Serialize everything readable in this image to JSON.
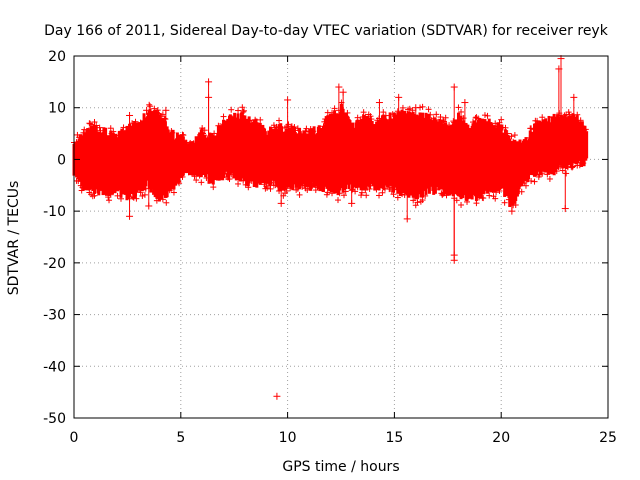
{
  "chart_data": {
    "type": "scatter",
    "title": "Day 166 of 2011, Sidereal Day-to-day VTEC variation (SDTVAR) for receiver reyk",
    "xlabel": "GPS time / hours",
    "ylabel": "SDTVAR / TECUs",
    "xlim": [
      0,
      25
    ],
    "ylim": [
      -50,
      20
    ],
    "xticks": [
      0,
      5,
      10,
      15,
      20,
      25
    ],
    "yticks": [
      -50,
      -40,
      -30,
      -20,
      -10,
      0,
      10,
      20
    ],
    "grid": true,
    "marker": "+",
    "color": "#ff0000",
    "series": [
      {
        "name": "SDTVAR",
        "envelope": {
          "x": [
            0.0,
            0.5,
            1.0,
            1.5,
            2.0,
            2.5,
            3.0,
            3.5,
            4.0,
            4.5,
            5.0,
            5.5,
            6.0,
            6.5,
            7.0,
            7.5,
            8.0,
            8.5,
            9.0,
            9.5,
            10.0,
            10.5,
            11.0,
            11.5,
            12.0,
            12.5,
            13.0,
            13.5,
            14.0,
            14.5,
            15.0,
            15.5,
            16.0,
            16.5,
            17.0,
            17.5,
            18.0,
            18.5,
            19.0,
            19.5,
            20.0,
            20.5,
            21.0,
            21.5,
            22.0,
            22.5,
            23.0,
            23.5,
            24.0
          ],
          "upper": [
            3,
            5,
            6,
            5,
            4,
            6,
            7,
            9,
            8,
            5,
            4,
            3,
            5,
            4,
            7,
            8,
            8,
            7,
            5,
            6,
            6,
            5,
            5,
            6,
            8,
            10,
            6,
            8,
            7,
            8,
            8,
            9,
            8,
            8,
            7,
            6,
            8,
            6,
            7,
            7,
            6,
            3,
            3,
            6,
            7,
            8,
            8,
            8,
            6
          ],
          "lower": [
            -3,
            -5,
            -6,
            -6,
            -6,
            -7,
            -6,
            -5,
            -8,
            -6,
            -3,
            -2,
            -3,
            -4,
            -3,
            -3,
            -4,
            -5,
            -4,
            -5,
            -5,
            -5,
            -5,
            -5,
            -6,
            -6,
            -5,
            -5,
            -5,
            -5,
            -6,
            -6,
            -7,
            -6,
            -6,
            -6,
            -7,
            -7,
            -7,
            -6,
            -5,
            -9,
            -4,
            -3,
            -2,
            -2,
            -1,
            -1,
            0
          ]
        },
        "points": [
          {
            "x": 9.5,
            "y": -45.8
          },
          {
            "x": 6.3,
            "y": 15
          },
          {
            "x": 6.3,
            "y": 12
          },
          {
            "x": 10.0,
            "y": 11.5
          },
          {
            "x": 12.6,
            "y": 13
          },
          {
            "x": 12.4,
            "y": 14
          },
          {
            "x": 14.3,
            "y": 11
          },
          {
            "x": 15.2,
            "y": 12
          },
          {
            "x": 17.8,
            "y": 14
          },
          {
            "x": 17.8,
            "y": -18.5
          },
          {
            "x": 17.8,
            "y": -19.5
          },
          {
            "x": 18.3,
            "y": 11
          },
          {
            "x": 22.8,
            "y": 19.5
          },
          {
            "x": 22.7,
            "y": 17.5
          },
          {
            "x": 23.4,
            "y": 12
          },
          {
            "x": 2.6,
            "y": -11
          },
          {
            "x": 2.6,
            "y": 8.5
          },
          {
            "x": 3.4,
            "y": 9.5
          },
          {
            "x": 4.3,
            "y": 9.5
          },
          {
            "x": 3.5,
            "y": -9
          },
          {
            "x": 9.7,
            "y": -8.5
          },
          {
            "x": 13.0,
            "y": -8.5
          },
          {
            "x": 15.6,
            "y": -11.5
          },
          {
            "x": 16.0,
            "y": 10
          },
          {
            "x": 20.5,
            "y": -10
          },
          {
            "x": 23.0,
            "y": -9.5
          },
          {
            "x": 20.3,
            "y": 5
          },
          {
            "x": 0.7,
            "y": 5.5
          }
        ]
      }
    ]
  }
}
